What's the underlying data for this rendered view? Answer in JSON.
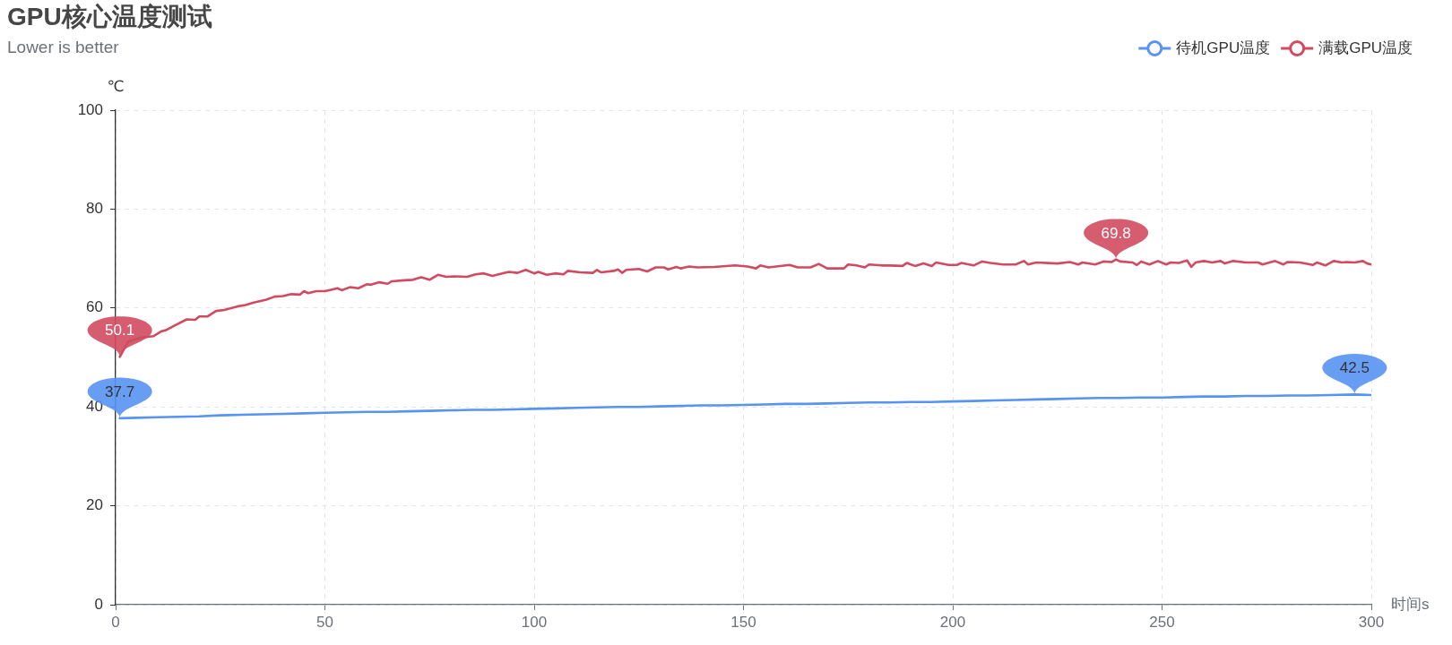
{
  "chart_data": {
    "type": "line",
    "title": "GPU核心温度测试",
    "subtitle": "Lower is better",
    "xlabel": "时间s",
    "ylabel": "℃",
    "xlim": [
      0,
      300
    ],
    "xticks": [
      0,
      50,
      100,
      150,
      200,
      250,
      300
    ],
    "ylim": [
      0,
      100
    ],
    "yticks": [
      0,
      20,
      40,
      60,
      80,
      100
    ],
    "grid": true,
    "legend": "top right",
    "series": [
      {
        "name": "待机GPU温度",
        "color": "#5793f3",
        "x": [
          1,
          5,
          10,
          15,
          20,
          25,
          30,
          35,
          40,
          45,
          50,
          55,
          60,
          65,
          70,
          75,
          80,
          85,
          90,
          95,
          100,
          105,
          110,
          115,
          120,
          125,
          130,
          135,
          140,
          145,
          150,
          155,
          160,
          165,
          170,
          175,
          180,
          185,
          190,
          195,
          200,
          205,
          210,
          215,
          220,
          225,
          230,
          235,
          240,
          245,
          250,
          255,
          260,
          265,
          270,
          275,
          280,
          285,
          290,
          296,
          300
        ],
        "values": [
          37.7,
          37.8,
          37.9,
          38.0,
          38.1,
          38.3,
          38.4,
          38.5,
          38.6,
          38.7,
          38.8,
          38.9,
          39.0,
          39.0,
          39.1,
          39.2,
          39.3,
          39.4,
          39.4,
          39.5,
          39.6,
          39.7,
          39.8,
          39.9,
          40.0,
          40.0,
          40.1,
          40.2,
          40.3,
          40.3,
          40.4,
          40.5,
          40.6,
          40.6,
          40.7,
          40.8,
          40.9,
          40.9,
          41.0,
          41.0,
          41.1,
          41.2,
          41.3,
          41.4,
          41.5,
          41.6,
          41.7,
          41.8,
          41.8,
          41.9,
          41.9,
          42.0,
          42.1,
          42.1,
          42.2,
          42.2,
          42.3,
          42.3,
          42.4,
          42.5,
          42.4
        ]
      },
      {
        "name": "满载GPU温度",
        "color": "#d14a61",
        "x": [
          1,
          3,
          6,
          9,
          11,
          12,
          14,
          17,
          19,
          20,
          22,
          24,
          26,
          29,
          31,
          33,
          36,
          38,
          40,
          42,
          44,
          45,
          46,
          48,
          50,
          51,
          53,
          54,
          56,
          58,
          60,
          61,
          63,
          65,
          66,
          69,
          71,
          73,
          75,
          77,
          79,
          81,
          84,
          86,
          88,
          90,
          93,
          94,
          96,
          98,
          100,
          101,
          103,
          105,
          107,
          108,
          111,
          114,
          115,
          116,
          119,
          120,
          121,
          122,
          125,
          127,
          129,
          131,
          132,
          134,
          135,
          137,
          139,
          143,
          148,
          151,
          153,
          154,
          156,
          161,
          163,
          166,
          168,
          170,
          174,
          175,
          177,
          179,
          180,
          183,
          185,
          188,
          189,
          191,
          193,
          195,
          196,
          199,
          201,
          202,
          205,
          207,
          209,
          212,
          215,
          217,
          218,
          220,
          225,
          228,
          230,
          231,
          234,
          236,
          238,
          239,
          240,
          243,
          244,
          245,
          247,
          249,
          251,
          252,
          254,
          256,
          257,
          258,
          260,
          262,
          264,
          265,
          267,
          270,
          273,
          274,
          277,
          279,
          280,
          283,
          286,
          287,
          289,
          291,
          293,
          294,
          296,
          298,
          299,
          300
        ],
        "values": [
          50.1,
          53.2,
          54.0,
          54.3,
          55.3,
          55.5,
          56.4,
          57.7,
          57.6,
          58.3,
          58.3,
          59.4,
          59.6,
          60.3,
          60.6,
          61.1,
          61.7,
          62.3,
          62.4,
          62.8,
          62.7,
          63.4,
          63.0,
          63.4,
          63.4,
          63.6,
          64.0,
          63.6,
          64.2,
          64.0,
          64.8,
          64.7,
          65.2,
          64.9,
          65.4,
          65.6,
          65.7,
          66.2,
          65.7,
          66.7,
          66.3,
          66.4,
          66.3,
          66.8,
          67.0,
          66.5,
          67.1,
          67.3,
          67.1,
          67.7,
          67.0,
          67.3,
          66.7,
          67.0,
          66.8,
          67.5,
          67.2,
          67.1,
          67.7,
          67.2,
          67.5,
          67.8,
          67.1,
          67.7,
          67.9,
          67.4,
          68.2,
          68.2,
          67.8,
          68.3,
          68.0,
          68.4,
          68.2,
          68.3,
          68.6,
          68.4,
          68.0,
          68.6,
          68.2,
          68.7,
          68.2,
          68.2,
          68.9,
          68.0,
          68.0,
          68.8,
          68.6,
          68.2,
          68.8,
          68.6,
          68.6,
          68.5,
          69.1,
          68.5,
          69.0,
          68.5,
          69.2,
          68.7,
          68.7,
          69.1,
          68.6,
          69.4,
          69.1,
          68.8,
          68.8,
          69.5,
          68.8,
          69.2,
          69.0,
          69.3,
          68.8,
          69.2,
          68.8,
          69.4,
          69.3,
          69.8,
          69.4,
          69.2,
          68.7,
          69.4,
          68.8,
          69.5,
          68.8,
          69.2,
          69.1,
          69.6,
          68.3,
          69.2,
          69.5,
          69.2,
          69.5,
          69.0,
          69.5,
          69.2,
          69.2,
          68.8,
          69.5,
          68.8,
          69.3,
          69.2,
          68.7,
          69.2,
          68.6,
          69.5,
          69.2,
          69.3,
          69.2,
          69.5,
          69.0,
          68.8
        ]
      }
    ],
    "annotations": [
      {
        "text": "37.7",
        "x": 1,
        "y": 37.7
      },
      {
        "text": "42.5",
        "x": 296,
        "y": 42.5
      },
      {
        "text": "50.1",
        "x": 1,
        "y": 50.1
      },
      {
        "text": "69.8",
        "x": 239,
        "y": 69.8
      }
    ]
  }
}
